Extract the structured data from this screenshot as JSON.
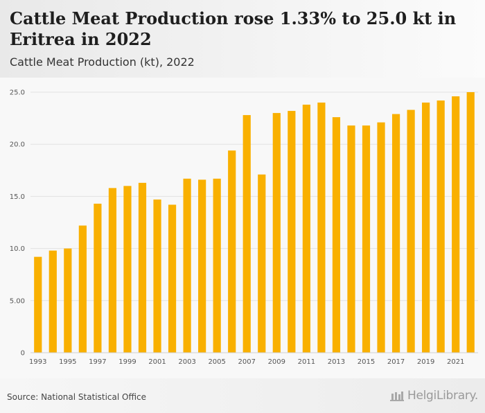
{
  "header": {
    "title": "Cattle Meat Production rose 1.33% to 25.0 kt in Eritrea in 2022",
    "subtitle": "Cattle Meat Production (kt), 2022"
  },
  "footer": {
    "source": "Source: National Statistical Office",
    "logo_text": "HelgiLibrary."
  },
  "colors": {
    "bar": "#f9b000",
    "grid": "#e2e2e2",
    "axis_text": "#555555"
  },
  "chart_data": {
    "type": "bar",
    "title": "Cattle Meat Production (kt), 2022",
    "categories": [
      "1993",
      "1994",
      "1995",
      "1996",
      "1997",
      "1998",
      "1999",
      "2000",
      "2001",
      "2002",
      "2003",
      "2004",
      "2005",
      "2006",
      "2007",
      "2008",
      "2009",
      "2010",
      "2011",
      "2012",
      "2013",
      "2014",
      "2015",
      "2016",
      "2017",
      "2018",
      "2019",
      "2020",
      "2021",
      "2022"
    ],
    "values": [
      9.2,
      9.8,
      10.0,
      12.2,
      14.3,
      15.8,
      16.0,
      16.3,
      14.7,
      14.2,
      16.7,
      16.6,
      16.7,
      19.4,
      22.8,
      17.1,
      23.0,
      23.2,
      23.8,
      24.0,
      22.6,
      21.8,
      21.8,
      22.1,
      22.9,
      23.3,
      24.0,
      24.2,
      24.6,
      25.0
    ],
    "x_tick_labels": [
      "1993",
      "1995",
      "1997",
      "1999",
      "2001",
      "2003",
      "2005",
      "2007",
      "2009",
      "2011",
      "2013",
      "2015",
      "2017",
      "2019",
      "2021"
    ],
    "y_ticks": [
      0,
      5,
      10,
      15,
      20,
      25
    ],
    "y_tick_labels": [
      "0",
      "5.00",
      "10.0",
      "15.0",
      "20.0",
      "25.0"
    ],
    "ylim": [
      0,
      25
    ],
    "grid": true,
    "xlabel": "",
    "ylabel": ""
  }
}
